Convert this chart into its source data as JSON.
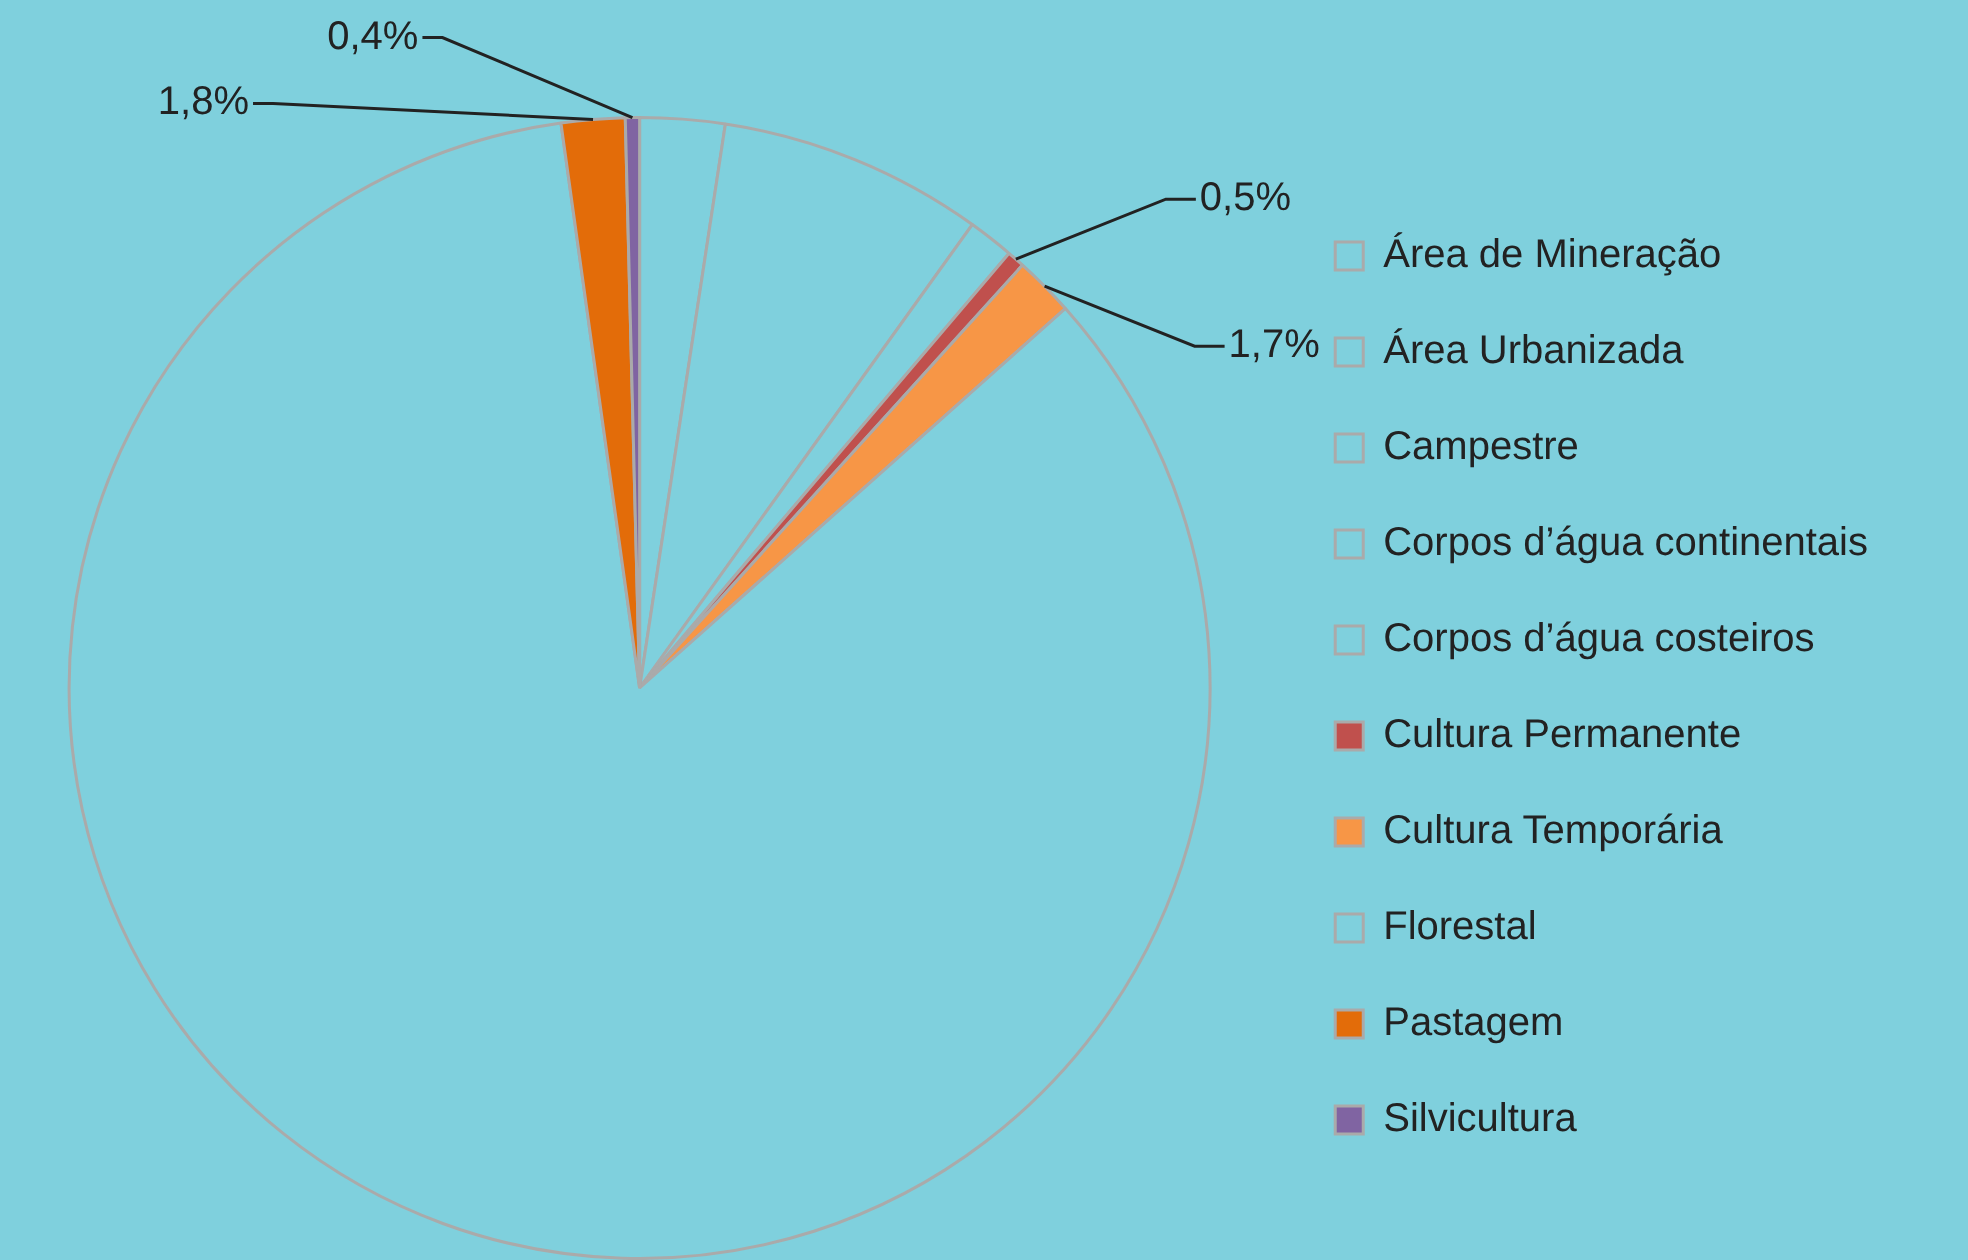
{
  "chart_data": {
    "type": "pie",
    "categories": [
      "Área de Mineração",
      "Área Urbanizada",
      "Campestre",
      "Corpos d’água continentais",
      "Corpos d’água costeiros",
      "Cultura Permanente",
      "Cultura Temporária",
      "Florestal",
      "Pastagem",
      "Silvicultura"
    ],
    "values": [
      null,
      2.4,
      7.5,
      null,
      1.3,
      0.5,
      1.7,
      84.3,
      1.8,
      0.4
    ],
    "colors": [
      "#7fd0dd",
      "#7fd0dd",
      "#7fd0dd",
      "#7fd0dd",
      "#7fd0dd",
      "#c0504d",
      "#f79646",
      "#7fd0dd",
      "#e36c09",
      "#8064a2"
    ],
    "value_labels": [
      null,
      null,
      null,
      null,
      null,
      "0,5%",
      "1,7%",
      null,
      "1,8%",
      "0,4%"
    ],
    "legend": "right"
  }
}
